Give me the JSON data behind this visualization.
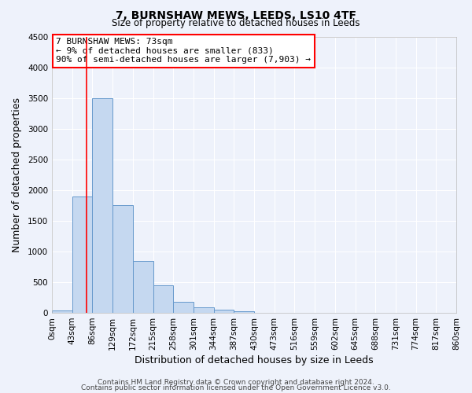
{
  "title": "7, BURNSHAW MEWS, LEEDS, LS10 4TF",
  "subtitle": "Size of property relative to detached houses in Leeds",
  "xlabel": "Distribution of detached houses by size in Leeds",
  "ylabel": "Number of detached properties",
  "bar_values": [
    40,
    1900,
    3500,
    1750,
    850,
    450,
    175,
    90,
    55,
    30,
    0,
    0,
    0,
    0,
    0,
    0,
    0,
    0,
    0,
    0
  ],
  "bin_labels": [
    "0sqm",
    "43sqm",
    "86sqm",
    "129sqm",
    "172sqm",
    "215sqm",
    "258sqm",
    "301sqm",
    "344sqm",
    "387sqm",
    "430sqm",
    "473sqm",
    "516sqm",
    "559sqm",
    "602sqm",
    "645sqm",
    "688sqm",
    "731sqm",
    "774sqm",
    "817sqm",
    "860sqm"
  ],
  "bar_color": "#c5d8f0",
  "bar_edge_color": "#6699cc",
  "vline_x": 73,
  "vline_color": "red",
  "annotation_text": "7 BURNSHAW MEWS: 73sqm\n← 9% of detached houses are smaller (833)\n90% of semi-detached houses are larger (7,903) →",
  "annotation_box_color": "white",
  "annotation_box_edge": "red",
  "ylim": [
    0,
    4500
  ],
  "yticks": [
    0,
    500,
    1000,
    1500,
    2000,
    2500,
    3000,
    3500,
    4000,
    4500
  ],
  "footer1": "Contains HM Land Registry data © Crown copyright and database right 2024.",
  "footer2": "Contains public sector information licensed under the Open Government Licence v3.0.",
  "bg_color": "#eef2fb",
  "grid_color": "#ffffff",
  "bin_width": 43
}
